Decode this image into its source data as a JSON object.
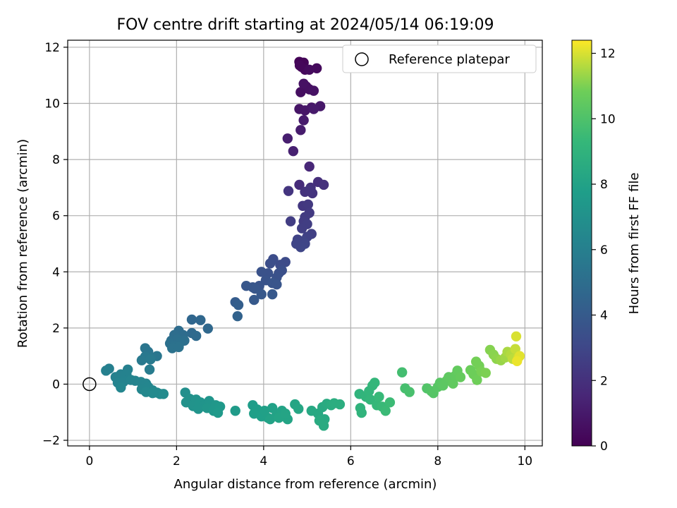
{
  "chart_data": {
    "type": "scatter",
    "title": "FOV centre drift starting at 2024/05/14 06:19:09",
    "xlabel": "Angular distance from reference (arcmin)",
    "ylabel": "Rotation from reference (arcmin)",
    "xlim": [
      -0.5,
      10.4
    ],
    "ylim": [
      -2.2,
      12.25
    ],
    "xticks": [
      0,
      2,
      4,
      6,
      8,
      10
    ],
    "yticks": [
      -2,
      0,
      2,
      4,
      6,
      8,
      10,
      12
    ],
    "grid": true,
    "legend": {
      "placement": "top-right",
      "entries": [
        "Reference platepar"
      ]
    },
    "reference_point": {
      "label": "Reference platepar",
      "x": 0,
      "y": 0
    },
    "colorbar": {
      "label": "Hours from first FF file",
      "colormap": "viridis",
      "range": [
        0,
        12.4
      ],
      "ticks": [
        0,
        2,
        4,
        6,
        8,
        10,
        12
      ]
    },
    "points": [
      {
        "x": 4.82,
        "y": 11.48,
        "t": 0.1
      },
      {
        "x": 4.92,
        "y": 11.45,
        "t": 0.15
      },
      {
        "x": 4.87,
        "y": 11.3,
        "t": 0.2
      },
      {
        "x": 4.95,
        "y": 11.2,
        "t": 0.3
      },
      {
        "x": 5.22,
        "y": 11.25,
        "t": 0.35
      },
      {
        "x": 5.05,
        "y": 11.2,
        "t": 0.4
      },
      {
        "x": 4.83,
        "y": 11.35,
        "t": 0.25
      },
      {
        "x": 4.98,
        "y": 10.6,
        "t": 0.5
      },
      {
        "x": 4.85,
        "y": 10.4,
        "t": 0.55
      },
      {
        "x": 5.05,
        "y": 10.5,
        "t": 0.6
      },
      {
        "x": 4.92,
        "y": 10.7,
        "t": 0.65
      },
      {
        "x": 5.15,
        "y": 10.45,
        "t": 0.7
      },
      {
        "x": 4.82,
        "y": 9.8,
        "t": 0.8
      },
      {
        "x": 4.95,
        "y": 9.75,
        "t": 0.85
      },
      {
        "x": 5.1,
        "y": 9.85,
        "t": 0.9
      },
      {
        "x": 5.3,
        "y": 9.9,
        "t": 0.95
      },
      {
        "x": 5.15,
        "y": 9.8,
        "t": 1.0
      },
      {
        "x": 4.92,
        "y": 9.4,
        "t": 1.05
      },
      {
        "x": 4.85,
        "y": 9.05,
        "t": 1.1
      },
      {
        "x": 4.55,
        "y": 8.75,
        "t": 1.2
      },
      {
        "x": 4.68,
        "y": 8.3,
        "t": 1.3
      },
      {
        "x": 5.05,
        "y": 7.75,
        "t": 1.6
      },
      {
        "x": 4.82,
        "y": 7.1,
        "t": 1.8
      },
      {
        "x": 5.25,
        "y": 7.2,
        "t": 1.9
      },
      {
        "x": 5.38,
        "y": 7.1,
        "t": 2.0
      },
      {
        "x": 5.08,
        "y": 7.0,
        "t": 2.0
      },
      {
        "x": 4.95,
        "y": 6.85,
        "t": 2.1
      },
      {
        "x": 5.12,
        "y": 6.8,
        "t": 2.1
      },
      {
        "x": 4.57,
        "y": 6.88,
        "t": 2.2
      },
      {
        "x": 5.05,
        "y": 6.9,
        "t": 2.15
      },
      {
        "x": 4.9,
        "y": 6.35,
        "t": 2.3
      },
      {
        "x": 5.02,
        "y": 6.4,
        "t": 2.35
      },
      {
        "x": 5.05,
        "y": 6.1,
        "t": 2.4
      },
      {
        "x": 4.95,
        "y": 5.95,
        "t": 2.45
      },
      {
        "x": 4.92,
        "y": 5.8,
        "t": 2.5
      },
      {
        "x": 4.62,
        "y": 5.8,
        "t": 2.55
      },
      {
        "x": 5.0,
        "y": 5.7,
        "t": 2.6
      },
      {
        "x": 4.88,
        "y": 5.55,
        "t": 2.6
      },
      {
        "x": 5.1,
        "y": 5.35,
        "t": 2.7
      },
      {
        "x": 5.0,
        "y": 5.25,
        "t": 2.75
      },
      {
        "x": 4.78,
        "y": 5.15,
        "t": 2.8
      },
      {
        "x": 4.9,
        "y": 5.1,
        "t": 2.85
      },
      {
        "x": 4.95,
        "y": 5.0,
        "t": 2.9
      },
      {
        "x": 4.85,
        "y": 4.88,
        "t": 2.95
      },
      {
        "x": 4.75,
        "y": 5.0,
        "t": 2.9
      },
      {
        "x": 4.5,
        "y": 4.35,
        "t": 3.2
      },
      {
        "x": 4.38,
        "y": 4.25,
        "t": 3.25
      },
      {
        "x": 4.22,
        "y": 4.45,
        "t": 3.3
      },
      {
        "x": 4.15,
        "y": 4.3,
        "t": 3.35
      },
      {
        "x": 4.42,
        "y": 4.05,
        "t": 3.4
      },
      {
        "x": 4.35,
        "y": 3.95,
        "t": 3.45
      },
      {
        "x": 4.3,
        "y": 3.8,
        "t": 3.5
      },
      {
        "x": 4.1,
        "y": 3.95,
        "t": 3.5
      },
      {
        "x": 3.95,
        "y": 4.0,
        "t": 3.55
      },
      {
        "x": 4.05,
        "y": 3.7,
        "t": 3.6
      },
      {
        "x": 3.9,
        "y": 3.5,
        "t": 3.65
      },
      {
        "x": 4.2,
        "y": 3.6,
        "t": 3.7
      },
      {
        "x": 4.3,
        "y": 3.55,
        "t": 3.7
      },
      {
        "x": 3.75,
        "y": 3.45,
        "t": 3.75
      },
      {
        "x": 3.8,
        "y": 3.4,
        "t": 3.8
      },
      {
        "x": 3.6,
        "y": 3.5,
        "t": 3.8
      },
      {
        "x": 3.95,
        "y": 3.2,
        "t": 3.85
      },
      {
        "x": 4.2,
        "y": 3.2,
        "t": 3.9
      },
      {
        "x": 3.78,
        "y": 3.0,
        "t": 3.95
      },
      {
        "x": 3.35,
        "y": 2.92,
        "t": 4.1
      },
      {
        "x": 3.42,
        "y": 2.82,
        "t": 4.2
      },
      {
        "x": 3.4,
        "y": 2.42,
        "t": 4.4
      },
      {
        "x": 2.35,
        "y": 2.3,
        "t": 4.6
      },
      {
        "x": 2.55,
        "y": 2.28,
        "t": 4.65
      },
      {
        "x": 2.72,
        "y": 1.98,
        "t": 4.7
      },
      {
        "x": 2.35,
        "y": 1.82,
        "t": 4.75
      },
      {
        "x": 2.45,
        "y": 1.72,
        "t": 4.8
      },
      {
        "x": 2.05,
        "y": 1.9,
        "t": 4.9
      },
      {
        "x": 2.15,
        "y": 1.75,
        "t": 4.95
      },
      {
        "x": 1.95,
        "y": 1.75,
        "t": 5.0
      },
      {
        "x": 1.88,
        "y": 1.55,
        "t": 5.05
      },
      {
        "x": 2.02,
        "y": 1.6,
        "t": 5.1
      },
      {
        "x": 2.18,
        "y": 1.55,
        "t": 5.1
      },
      {
        "x": 1.85,
        "y": 1.45,
        "t": 5.15
      },
      {
        "x": 2.08,
        "y": 1.48,
        "t": 5.15
      },
      {
        "x": 1.95,
        "y": 1.35,
        "t": 5.2
      },
      {
        "x": 1.9,
        "y": 1.28,
        "t": 5.25
      },
      {
        "x": 2.05,
        "y": 1.32,
        "t": 5.25
      },
      {
        "x": 1.28,
        "y": 1.28,
        "t": 5.4
      },
      {
        "x": 1.35,
        "y": 1.15,
        "t": 5.45
      },
      {
        "x": 1.55,
        "y": 1.0,
        "t": 5.5
      },
      {
        "x": 1.42,
        "y": 0.95,
        "t": 5.55
      },
      {
        "x": 1.28,
        "y": 0.98,
        "t": 5.6
      },
      {
        "x": 1.2,
        "y": 0.85,
        "t": 5.65
      },
      {
        "x": 1.4,
        "y": 0.88,
        "t": 5.7
      },
      {
        "x": 1.38,
        "y": 0.52,
        "t": 5.8
      },
      {
        "x": 0.45,
        "y": 0.55,
        "t": 6.0
      },
      {
        "x": 0.38,
        "y": 0.48,
        "t": 6.05
      },
      {
        "x": 0.88,
        "y": 0.52,
        "t": 6.05
      },
      {
        "x": 0.72,
        "y": 0.35,
        "t": 6.1
      },
      {
        "x": 0.6,
        "y": 0.25,
        "t": 6.1
      },
      {
        "x": 0.85,
        "y": 0.35,
        "t": 6.15
      },
      {
        "x": 0.75,
        "y": 0.15,
        "t": 6.15
      },
      {
        "x": 0.65,
        "y": 0.05,
        "t": 6.2
      },
      {
        "x": 0.78,
        "y": 0.08,
        "t": 6.2
      },
      {
        "x": 0.95,
        "y": 0.15,
        "t": 6.25
      },
      {
        "x": 1.05,
        "y": 0.12,
        "t": 6.25
      },
      {
        "x": 1.18,
        "y": 0.08,
        "t": 6.3
      },
      {
        "x": 1.3,
        "y": 0.02,
        "t": 6.3
      },
      {
        "x": 0.72,
        "y": -0.12,
        "t": 6.35
      },
      {
        "x": 1.35,
        "y": -0.1,
        "t": 6.35
      },
      {
        "x": 1.2,
        "y": -0.18,
        "t": 6.4
      },
      {
        "x": 1.45,
        "y": -0.22,
        "t": 6.45
      },
      {
        "x": 1.3,
        "y": -0.28,
        "t": 6.5
      },
      {
        "x": 1.55,
        "y": -0.3,
        "t": 6.55
      },
      {
        "x": 1.62,
        "y": -0.35,
        "t": 6.6
      },
      {
        "x": 1.45,
        "y": -0.32,
        "t": 6.6
      },
      {
        "x": 1.7,
        "y": -0.35,
        "t": 6.65
      },
      {
        "x": 2.2,
        "y": -0.3,
        "t": 6.9
      },
      {
        "x": 2.3,
        "y": -0.52,
        "t": 7.0
      },
      {
        "x": 2.22,
        "y": -0.65,
        "t": 7.05
      },
      {
        "x": 2.45,
        "y": -0.55,
        "t": 7.1
      },
      {
        "x": 2.38,
        "y": -0.78,
        "t": 7.1
      },
      {
        "x": 2.55,
        "y": -0.65,
        "t": 7.15
      },
      {
        "x": 2.62,
        "y": -0.78,
        "t": 7.2
      },
      {
        "x": 2.5,
        "y": -0.88,
        "t": 7.2
      },
      {
        "x": 2.75,
        "y": -0.6,
        "t": 7.25
      },
      {
        "x": 2.7,
        "y": -0.85,
        "t": 7.3
      },
      {
        "x": 2.9,
        "y": -0.75,
        "t": 7.35
      },
      {
        "x": 2.85,
        "y": -0.95,
        "t": 7.4
      },
      {
        "x": 3.0,
        "y": -0.8,
        "t": 7.45
      },
      {
        "x": 2.95,
        "y": -1.02,
        "t": 7.5
      },
      {
        "x": 3.35,
        "y": -0.95,
        "t": 7.6
      },
      {
        "x": 3.75,
        "y": -0.75,
        "t": 7.7
      },
      {
        "x": 3.85,
        "y": -0.9,
        "t": 7.75
      },
      {
        "x": 3.78,
        "y": -1.05,
        "t": 7.8
      },
      {
        "x": 3.95,
        "y": -1.15,
        "t": 7.85
      },
      {
        "x": 4.02,
        "y": -0.95,
        "t": 7.9
      },
      {
        "x": 4.1,
        "y": -1.2,
        "t": 7.9
      },
      {
        "x": 4.2,
        "y": -0.85,
        "t": 7.95
      },
      {
        "x": 4.3,
        "y": -1.08,
        "t": 8.0
      },
      {
        "x": 4.15,
        "y": -1.25,
        "t": 8.0
      },
      {
        "x": 4.42,
        "y": -0.95,
        "t": 8.05
      },
      {
        "x": 4.35,
        "y": -1.2,
        "t": 8.1
      },
      {
        "x": 4.55,
        "y": -1.25,
        "t": 8.1
      },
      {
        "x": 4.5,
        "y": -1.05,
        "t": 8.15
      },
      {
        "x": 4.72,
        "y": -0.72,
        "t": 8.2
      },
      {
        "x": 4.8,
        "y": -0.88,
        "t": 8.25
      },
      {
        "x": 5.1,
        "y": -0.95,
        "t": 8.35
      },
      {
        "x": 5.25,
        "y": -1.05,
        "t": 8.4
      },
      {
        "x": 5.35,
        "y": -0.82,
        "t": 8.45
      },
      {
        "x": 5.45,
        "y": -0.7,
        "t": 8.5
      },
      {
        "x": 5.4,
        "y": -1.25,
        "t": 8.45
      },
      {
        "x": 5.28,
        "y": -1.3,
        "t": 8.5
      },
      {
        "x": 5.38,
        "y": -1.48,
        "t": 8.5
      },
      {
        "x": 5.55,
        "y": -0.75,
        "t": 8.6
      },
      {
        "x": 5.62,
        "y": -0.68,
        "t": 8.65
      },
      {
        "x": 5.75,
        "y": -0.72,
        "t": 8.7
      },
      {
        "x": 6.22,
        "y": -0.85,
        "t": 9.0
      },
      {
        "x": 6.2,
        "y": -0.35,
        "t": 9.05
      },
      {
        "x": 6.25,
        "y": -1.02,
        "t": 9.05
      },
      {
        "x": 6.35,
        "y": -0.45,
        "t": 9.1
      },
      {
        "x": 6.42,
        "y": -0.25,
        "t": 9.15
      },
      {
        "x": 6.5,
        "y": -0.05,
        "t": 9.2
      },
      {
        "x": 6.45,
        "y": -0.55,
        "t": 9.2
      },
      {
        "x": 6.55,
        "y": 0.05,
        "t": 9.25
      },
      {
        "x": 6.6,
        "y": -0.75,
        "t": 9.3
      },
      {
        "x": 6.65,
        "y": -0.45,
        "t": 9.35
      },
      {
        "x": 6.72,
        "y": -0.8,
        "t": 9.4
      },
      {
        "x": 6.8,
        "y": -0.95,
        "t": 9.45
      },
      {
        "x": 6.9,
        "y": -0.65,
        "t": 9.5
      },
      {
        "x": 7.18,
        "y": 0.42,
        "t": 9.7
      },
      {
        "x": 7.25,
        "y": -0.15,
        "t": 9.8
      },
      {
        "x": 7.35,
        "y": -0.28,
        "t": 9.85
      },
      {
        "x": 7.75,
        "y": -0.15,
        "t": 10.1
      },
      {
        "x": 7.85,
        "y": -0.25,
        "t": 10.15
      },
      {
        "x": 7.9,
        "y": -0.32,
        "t": 10.2
      },
      {
        "x": 8.0,
        "y": -0.1,
        "t": 10.25
      },
      {
        "x": 8.05,
        "y": 0.05,
        "t": 10.3
      },
      {
        "x": 8.12,
        "y": -0.05,
        "t": 10.35
      },
      {
        "x": 8.2,
        "y": 0.12,
        "t": 10.4
      },
      {
        "x": 8.25,
        "y": 0.25,
        "t": 10.45
      },
      {
        "x": 8.35,
        "y": 0.02,
        "t": 10.5
      },
      {
        "x": 8.4,
        "y": 0.3,
        "t": 10.5
      },
      {
        "x": 8.45,
        "y": 0.48,
        "t": 10.55
      },
      {
        "x": 8.52,
        "y": 0.25,
        "t": 10.6
      },
      {
        "x": 8.75,
        "y": 0.5,
        "t": 10.75
      },
      {
        "x": 8.82,
        "y": 0.35,
        "t": 10.8
      },
      {
        "x": 8.9,
        "y": 0.15,
        "t": 10.85
      },
      {
        "x": 8.88,
        "y": 0.8,
        "t": 10.9
      },
      {
        "x": 8.95,
        "y": 0.65,
        "t": 10.9
      },
      {
        "x": 9.0,
        "y": 0.45,
        "t": 10.95
      },
      {
        "x": 9.1,
        "y": 0.4,
        "t": 11.0
      },
      {
        "x": 9.2,
        "y": 1.22,
        "t": 11.1
      },
      {
        "x": 9.28,
        "y": 1.05,
        "t": 11.15
      },
      {
        "x": 9.35,
        "y": 0.9,
        "t": 11.2
      },
      {
        "x": 9.45,
        "y": 0.85,
        "t": 11.3
      },
      {
        "x": 9.55,
        "y": 0.95,
        "t": 11.4
      },
      {
        "x": 9.6,
        "y": 1.15,
        "t": 11.5
      },
      {
        "x": 9.68,
        "y": 1.05,
        "t": 11.6
      },
      {
        "x": 9.72,
        "y": 0.9,
        "t": 11.7
      },
      {
        "x": 9.78,
        "y": 1.25,
        "t": 11.8
      },
      {
        "x": 9.85,
        "y": 0.95,
        "t": 11.9
      },
      {
        "x": 9.8,
        "y": 1.7,
        "t": 12.0
      },
      {
        "x": 9.88,
        "y": 1.0,
        "t": 12.1
      },
      {
        "x": 9.82,
        "y": 0.82,
        "t": 12.2
      }
    ]
  }
}
